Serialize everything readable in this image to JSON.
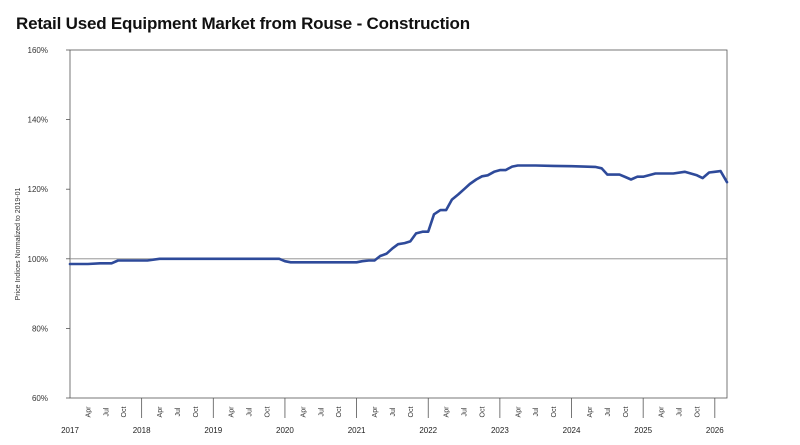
{
  "chart_data": {
    "type": "line",
    "title": "Retail Used Equipment Market from Rouse - Construction",
    "xlabel": "",
    "ylabel": "Price Indices Normalized to 2019-01",
    "ylim": [
      60,
      160
    ],
    "yticks": [
      "60%",
      "80%",
      "100%",
      "120%",
      "140%",
      "160%"
    ],
    "xlim": [
      2017.0,
      2026.17
    ],
    "year_labels": [
      "2017",
      "2018",
      "2019",
      "2020",
      "2021",
      "2022",
      "2023",
      "2024",
      "2025",
      "2026"
    ],
    "month_labels": [
      "Apr",
      "Jul",
      "Oct"
    ],
    "reference_line": 100,
    "grid": false,
    "series": [
      {
        "name": "",
        "color": "#2e4a9a",
        "x": [
          2017.0,
          2017.25,
          2017.42,
          2017.58,
          2017.67,
          2017.83,
          2018.0,
          2018.08,
          2018.25,
          2018.5,
          2018.75,
          2019.0,
          2019.25,
          2019.5,
          2019.75,
          2019.92,
          2020.0,
          2020.08,
          2020.25,
          2020.5,
          2020.75,
          2021.0,
          2021.08,
          2021.17,
          2021.25,
          2021.33,
          2021.42,
          2021.5,
          2021.58,
          2021.67,
          2021.75,
          2021.83,
          2021.92,
          2022.0,
          2022.08,
          2022.17,
          2022.25,
          2022.33,
          2022.42,
          2022.5,
          2022.58,
          2022.67,
          2022.75,
          2022.83,
          2022.92,
          2023.0,
          2023.08,
          2023.17,
          2023.25,
          2023.5,
          2023.75,
          2024.0,
          2024.17,
          2024.33,
          2024.42,
          2024.5,
          2024.67,
          2024.75,
          2024.83,
          2024.92,
          2025.0,
          2025.17,
          2025.25,
          2025.42,
          2025.58,
          2025.75,
          2025.83,
          2025.92,
          2026.0,
          2026.08,
          2026.17
        ],
        "values": [
          98.5,
          98.5,
          98.7,
          98.7,
          99.5,
          99.5,
          99.5,
          99.5,
          100.0,
          100.0,
          100.0,
          100.0,
          100.0,
          100.0,
          100.0,
          100.0,
          99.3,
          99.0,
          99.0,
          99.0,
          99.0,
          99.0,
          99.3,
          99.5,
          99.5,
          100.8,
          101.5,
          103.0,
          104.2,
          104.5,
          105.0,
          107.3,
          107.8,
          107.8,
          112.8,
          114.0,
          114.0,
          117.0,
          118.5,
          120.0,
          121.5,
          122.8,
          123.7,
          124.0,
          125.0,
          125.5,
          125.5,
          126.5,
          126.8,
          126.8,
          126.7,
          126.6,
          126.5,
          126.4,
          126.0,
          124.2,
          124.2,
          123.5,
          122.8,
          123.6,
          123.6,
          124.5,
          124.5,
          124.5,
          125.0,
          124.0,
          123.2,
          124.8,
          125.0,
          125.2,
          122.0
        ]
      }
    ]
  }
}
